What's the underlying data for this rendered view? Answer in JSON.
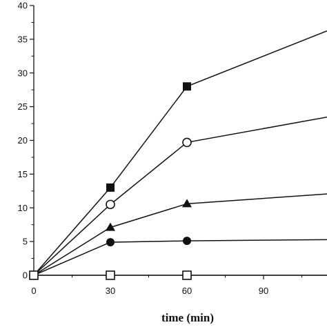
{
  "chart_data": {
    "type": "line",
    "title": "",
    "xlabel": "time  (min)",
    "ylabel": "",
    "xlim": [
      0,
      120
    ],
    "ylim": [
      0,
      40
    ],
    "xticks": [
      0,
      30,
      60,
      90
    ],
    "yticks": [
      0,
      5,
      10,
      15,
      20,
      25,
      30,
      35,
      40
    ],
    "x": [
      0,
      30,
      60,
      120
    ],
    "grid": false,
    "series": [
      {
        "marker": "filled-square",
        "values": [
          0,
          13.0,
          28.0,
          37.0
        ]
      },
      {
        "marker": "open-circle",
        "values": [
          0,
          10.5,
          19.7,
          23.8
        ]
      },
      {
        "marker": "filled-triangle",
        "values": [
          0,
          7.1,
          10.6,
          12.2
        ]
      },
      {
        "marker": "filled-circle",
        "values": [
          0,
          4.9,
          5.1,
          5.3
        ]
      },
      {
        "marker": "open-square",
        "values": [
          0,
          0,
          0,
          0
        ]
      }
    ],
    "colors": {
      "line": "#111111",
      "marker": "#111111",
      "background": "#ffffff"
    }
  }
}
